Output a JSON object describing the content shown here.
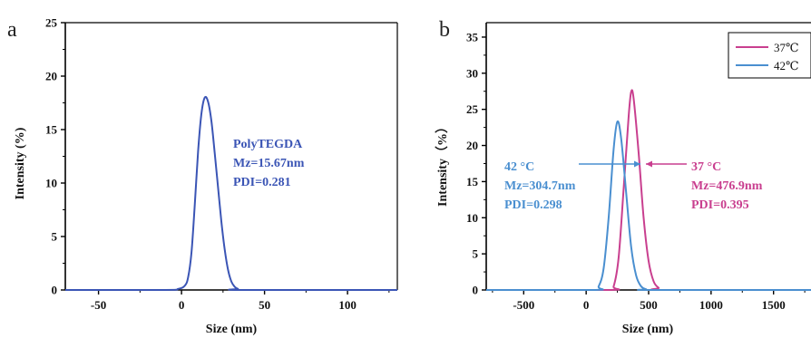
{
  "chart_data": [
    {
      "panel": "a",
      "type": "line",
      "xlabel": "Size (nm)",
      "ylabel": "Intensity (%)",
      "xlim": [
        -70,
        130
      ],
      "ylim": [
        0,
        25
      ],
      "xticks": [
        -50,
        0,
        50,
        100
      ],
      "yticks": [
        0,
        5,
        10,
        15,
        20,
        25
      ],
      "x_tick_labels": [
        "-50",
        "0",
        "50",
        "100"
      ],
      "y_tick_labels": [
        "0",
        "5",
        "10",
        "15",
        "20",
        "25"
      ],
      "grid": false,
      "series": [
        {
          "color": "#3b55b5",
          "x": [
            -70,
            -10,
            -2,
            2,
            4,
            6,
            8,
            10,
            12,
            14,
            16,
            18,
            20,
            22,
            24,
            26,
            28,
            30,
            32,
            34,
            36,
            130
          ],
          "y": [
            0,
            0,
            0.1,
            0.4,
            1.2,
            3.5,
            8.0,
            13.0,
            16.5,
            18.0,
            17.6,
            15.8,
            12.8,
            9.6,
            6.4,
            3.8,
            1.9,
            0.8,
            0.3,
            0.1,
            0,
            0
          ]
        }
      ],
      "annotations": [
        {
          "lines": [
            "PolyTEGDA",
            "Mz=15.67nm",
            "PDI=0.281"
          ],
          "color": "#3b55b5"
        }
      ]
    },
    {
      "panel": "b",
      "type": "line",
      "xlabel": "Size (nm)",
      "ylabel": "Intensity（%）",
      "xlim": [
        -800,
        1800
      ],
      "ylim": [
        0,
        37
      ],
      "xticks": [
        -500,
        0,
        500,
        1000,
        1500
      ],
      "yticks": [
        0,
        5,
        10,
        15,
        20,
        25,
        30,
        35
      ],
      "x_tick_labels": [
        "-500",
        "0",
        "500",
        "1000",
        "1500"
      ],
      "y_tick_labels": [
        "0",
        "5",
        "10",
        "15",
        "20",
        "25",
        "30",
        "35"
      ],
      "grid": false,
      "legend_position": "top-right",
      "series": [
        {
          "name": "37°C",
          "color": "#c93f8f",
          "x": [
            -800,
            180,
            220,
            260,
            300,
            340,
            360,
            380,
            420,
            460,
            500,
            540,
            580,
            620,
            1800
          ],
          "y": [
            0,
            0,
            0.5,
            4.5,
            14.0,
            24.0,
            27.4,
            26.5,
            19.0,
            10.0,
            4.0,
            1.2,
            0.3,
            0,
            0
          ]
        },
        {
          "name": "42°C",
          "color": "#4a8fd0",
          "x": [
            -800,
            60,
            100,
            140,
            180,
            220,
            250,
            280,
            320,
            360,
            400,
            440,
            480,
            520,
            1800
          ],
          "y": [
            0,
            0,
            0.5,
            3.0,
            10.0,
            19.5,
            23.3,
            21.0,
            13.5,
            6.0,
            2.0,
            0.5,
            0.1,
            0,
            0
          ]
        }
      ],
      "legend": [
        "37℃",
        "42℃"
      ],
      "annotations": [
        {
          "lines": [
            "42 °C",
            "Mz=304.7nm",
            "PDI=0.298"
          ],
          "color": "#4a8fd0"
        },
        {
          "lines": [
            "37 °C",
            "Mz=476.9nm",
            "PDI=0.395"
          ],
          "color": "#c93f8f"
        }
      ]
    }
  ]
}
